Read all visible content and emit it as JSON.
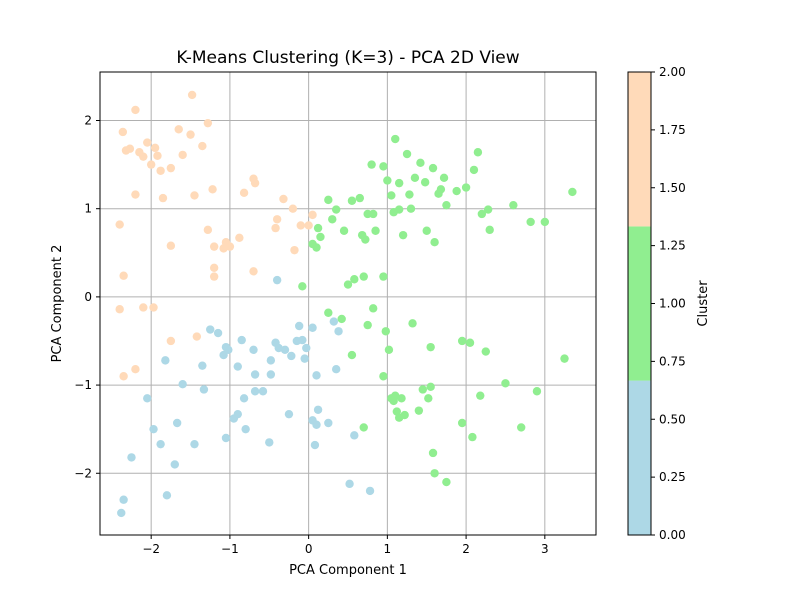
{
  "chart_data": {
    "type": "scatter",
    "title": "K-Means Clustering (K=3) - PCA 2D View",
    "xlabel": "PCA Component 1",
    "ylabel": "PCA Component 2",
    "xlim": [
      -2.65,
      3.65
    ],
    "ylim": [
      -2.7,
      2.55
    ],
    "xticks": [
      -2,
      -1,
      0,
      1,
      2,
      3
    ],
    "xtick_labels": [
      "−2",
      "−1",
      "0",
      "1",
      "2",
      "3"
    ],
    "yticks": [
      -2,
      -1,
      0,
      1,
      2
    ],
    "ytick_labels": [
      "−2",
      "−1",
      "0",
      "1",
      "2"
    ],
    "grid": true,
    "colorbar": {
      "label": "Cluster",
      "range": [
        0,
        2
      ],
      "ticks": [
        0,
        0.25,
        0.5,
        0.75,
        1.0,
        1.25,
        1.5,
        1.75,
        2.0
      ],
      "tick_labels": [
        "0.00",
        "0.25",
        "0.50",
        "0.75",
        "1.00",
        "1.25",
        "1.50",
        "1.75",
        "2.00"
      ],
      "bands": [
        {
          "from": 0,
          "to": 0.667,
          "color": "#add8e6"
        },
        {
          "from": 0.667,
          "to": 1.333,
          "color": "#90ee90"
        },
        {
          "from": 1.333,
          "to": 2,
          "color": "#ffdab9"
        }
      ]
    },
    "series": [
      {
        "cluster": 0,
        "color": "#add8e6",
        "points": [
          [
            -2.35,
            -2.3
          ],
          [
            -2.38,
            -2.45
          ],
          [
            -2.25,
            -1.82
          ],
          [
            -2.05,
            -1.15
          ],
          [
            -1.97,
            -1.5
          ],
          [
            -1.88,
            -1.67
          ],
          [
            -1.8,
            -2.25
          ],
          [
            -1.82,
            -0.72
          ],
          [
            -1.7,
            -1.9
          ],
          [
            -1.67,
            -1.43
          ],
          [
            -1.6,
            -0.99
          ],
          [
            -1.45,
            -1.67
          ],
          [
            -1.35,
            -0.78
          ],
          [
            -1.33,
            -1.05
          ],
          [
            -1.25,
            -0.37
          ],
          [
            -1.15,
            -0.41
          ],
          [
            -1.08,
            -0.66
          ],
          [
            -1.05,
            -1.6
          ],
          [
            -1.02,
            -0.6
          ],
          [
            -0.95,
            -1.38
          ],
          [
            -0.9,
            -0.79
          ],
          [
            -0.9,
            -1.33
          ],
          [
            -0.85,
            -0.49
          ],
          [
            -0.82,
            -1.15
          ],
          [
            -0.8,
            -1.5
          ],
          [
            -0.7,
            -0.6
          ],
          [
            -0.68,
            -1.07
          ],
          [
            -0.68,
            -0.88
          ],
          [
            -0.58,
            -1.07
          ],
          [
            -0.5,
            -1.65
          ],
          [
            -0.48,
            -0.88
          ],
          [
            -0.48,
            -0.72
          ],
          [
            -0.42,
            -0.52
          ],
          [
            -0.38,
            -0.58
          ],
          [
            -0.3,
            -0.6
          ],
          [
            -0.25,
            -1.33
          ],
          [
            -0.22,
            -0.67
          ],
          [
            -0.15,
            -0.5
          ],
          [
            -0.12,
            -0.33
          ],
          [
            -0.08,
            -0.49
          ],
          [
            -0.05,
            -0.7
          ],
          [
            -0.03,
            -0.58
          ],
          [
            0.05,
            -0.35
          ],
          [
            0.05,
            -1.4
          ],
          [
            0.08,
            -1.68
          ],
          [
            0.12,
            -1.28
          ],
          [
            0.1,
            -1.45
          ],
          [
            0.1,
            -0.89
          ],
          [
            0.25,
            -1.43
          ],
          [
            0.32,
            -0.28
          ],
          [
            0.35,
            -0.82
          ],
          [
            0.38,
            -0.39
          ],
          [
            0.52,
            -2.12
          ],
          [
            0.58,
            -1.57
          ],
          [
            0.78,
            -2.2
          ],
          [
            -0.4,
            0.19
          ],
          [
            -1.05,
            -0.57
          ]
        ]
      },
      {
        "cluster": 1,
        "color": "#90ee90",
        "points": [
          [
            -0.08,
            0.12
          ],
          [
            0.05,
            0.6
          ],
          [
            0.1,
            0.56
          ],
          [
            0.12,
            0.78
          ],
          [
            0.15,
            0.68
          ],
          [
            0.25,
            1.1
          ],
          [
            0.3,
            0.88
          ],
          [
            0.35,
            0.99
          ],
          [
            0.45,
            0.75
          ],
          [
            0.55,
            1.09
          ],
          [
            0.5,
            0.14
          ],
          [
            0.58,
            0.2
          ],
          [
            0.65,
            1.12
          ],
          [
            0.68,
            0.7
          ],
          [
            0.72,
            0.65
          ],
          [
            0.75,
            0.94
          ],
          [
            0.82,
            0.94
          ],
          [
            0.85,
            0.75
          ],
          [
            0.8,
            1.5
          ],
          [
            0.95,
            1.48
          ],
          [
            1.0,
            1.32
          ],
          [
            1.05,
            1.15
          ],
          [
            1.08,
            0.96
          ],
          [
            1.1,
            1.79
          ],
          [
            1.15,
            1.29
          ],
          [
            1.15,
            0.99
          ],
          [
            1.2,
            0.7
          ],
          [
            1.25,
            1.62
          ],
          [
            1.28,
            1.16
          ],
          [
            1.3,
            1.0
          ],
          [
            1.35,
            1.35
          ],
          [
            1.42,
            1.52
          ],
          [
            1.48,
            1.3
          ],
          [
            1.5,
            0.75
          ],
          [
            1.58,
            1.46
          ],
          [
            1.6,
            0.62
          ],
          [
            1.65,
            1.17
          ],
          [
            1.68,
            1.22
          ],
          [
            1.72,
            1.35
          ],
          [
            1.75,
            1.04
          ],
          [
            1.88,
            1.2
          ],
          [
            2.0,
            1.24
          ],
          [
            2.1,
            1.44
          ],
          [
            2.15,
            1.64
          ],
          [
            2.2,
            0.94
          ],
          [
            2.28,
            0.99
          ],
          [
            2.3,
            0.76
          ],
          [
            2.6,
            1.04
          ],
          [
            2.82,
            0.85
          ],
          [
            3.0,
            0.85
          ],
          [
            3.35,
            1.19
          ],
          [
            0.25,
            -0.18
          ],
          [
            0.42,
            -0.25
          ],
          [
            0.55,
            -0.66
          ],
          [
            0.7,
            0.23
          ],
          [
            0.75,
            -0.32
          ],
          [
            0.82,
            -0.13
          ],
          [
            0.95,
            0.23
          ],
          [
            0.98,
            -0.39
          ],
          [
            1.02,
            -0.6
          ],
          [
            0.95,
            -0.9
          ],
          [
            1.05,
            -1.15
          ],
          [
            1.08,
            -1.18
          ],
          [
            1.1,
            -1.12
          ],
          [
            1.12,
            -1.3
          ],
          [
            1.15,
            -1.37
          ],
          [
            1.18,
            -1.15
          ],
          [
            1.22,
            -1.34
          ],
          [
            1.32,
            -0.3
          ],
          [
            1.4,
            -1.29
          ],
          [
            1.45,
            -1.05
          ],
          [
            1.52,
            -1.15
          ],
          [
            1.55,
            -1.02
          ],
          [
            1.55,
            -0.57
          ],
          [
            1.58,
            -1.77
          ],
          [
            1.6,
            -2.0
          ],
          [
            1.75,
            -2.1
          ],
          [
            1.95,
            -0.5
          ],
          [
            1.95,
            -1.43
          ],
          [
            2.05,
            -0.52
          ],
          [
            2.08,
            -1.59
          ],
          [
            2.18,
            -1.12
          ],
          [
            2.25,
            -0.62
          ],
          [
            2.5,
            -0.98
          ],
          [
            2.7,
            -1.48
          ],
          [
            2.9,
            -1.07
          ],
          [
            3.25,
            -0.7
          ],
          [
            0.7,
            -1.48
          ]
        ]
      },
      {
        "cluster": 2,
        "color": "#ffdab9",
        "points": [
          [
            -2.4,
            0.82
          ],
          [
            -2.4,
            -0.14
          ],
          [
            -2.35,
            0.24
          ],
          [
            -2.36,
            1.87
          ],
          [
            -2.32,
            1.66
          ],
          [
            -2.27,
            1.68
          ],
          [
            -2.2,
            2.12
          ],
          [
            -2.2,
            1.16
          ],
          [
            -2.15,
            1.64
          ],
          [
            -2.1,
            1.59
          ],
          [
            -2.05,
            1.75
          ],
          [
            -2.0,
            1.5
          ],
          [
            -1.95,
            1.69
          ],
          [
            -1.92,
            1.6
          ],
          [
            -1.88,
            1.43
          ],
          [
            -1.85,
            1.12
          ],
          [
            -1.75,
            1.46
          ],
          [
            -1.65,
            1.9
          ],
          [
            -1.6,
            1.61
          ],
          [
            -1.5,
            1.84
          ],
          [
            -1.48,
            2.29
          ],
          [
            -1.45,
            1.15
          ],
          [
            -1.35,
            1.71
          ],
          [
            -1.28,
            1.97
          ],
          [
            -1.28,
            0.76
          ],
          [
            -1.22,
            1.22
          ],
          [
            -1.2,
            0.57
          ],
          [
            -1.2,
            0.33
          ],
          [
            -1.2,
            0.23
          ],
          [
            -1.08,
            0.55
          ],
          [
            -1.05,
            0.62
          ],
          [
            -1.0,
            0.57
          ],
          [
            -0.88,
            0.67
          ],
          [
            -0.82,
            1.18
          ],
          [
            -0.7,
            1.34
          ],
          [
            -0.68,
            1.29
          ],
          [
            -0.42,
            0.78
          ],
          [
            -0.4,
            0.88
          ],
          [
            -0.32,
            1.11
          ],
          [
            -0.2,
            1.0
          ],
          [
            -0.18,
            0.53
          ],
          [
            -0.1,
            0.81
          ],
          [
            0.0,
            0.81
          ],
          [
            0.05,
            0.93
          ],
          [
            -0.7,
            0.29
          ],
          [
            -1.75,
            0.58
          ],
          [
            -2.2,
            -0.82
          ],
          [
            -2.35,
            -0.9
          ],
          [
            -2.1,
            -0.12
          ],
          [
            -1.97,
            -0.12
          ],
          [
            -1.75,
            -0.5
          ],
          [
            -1.42,
            -0.45
          ]
        ]
      }
    ]
  }
}
